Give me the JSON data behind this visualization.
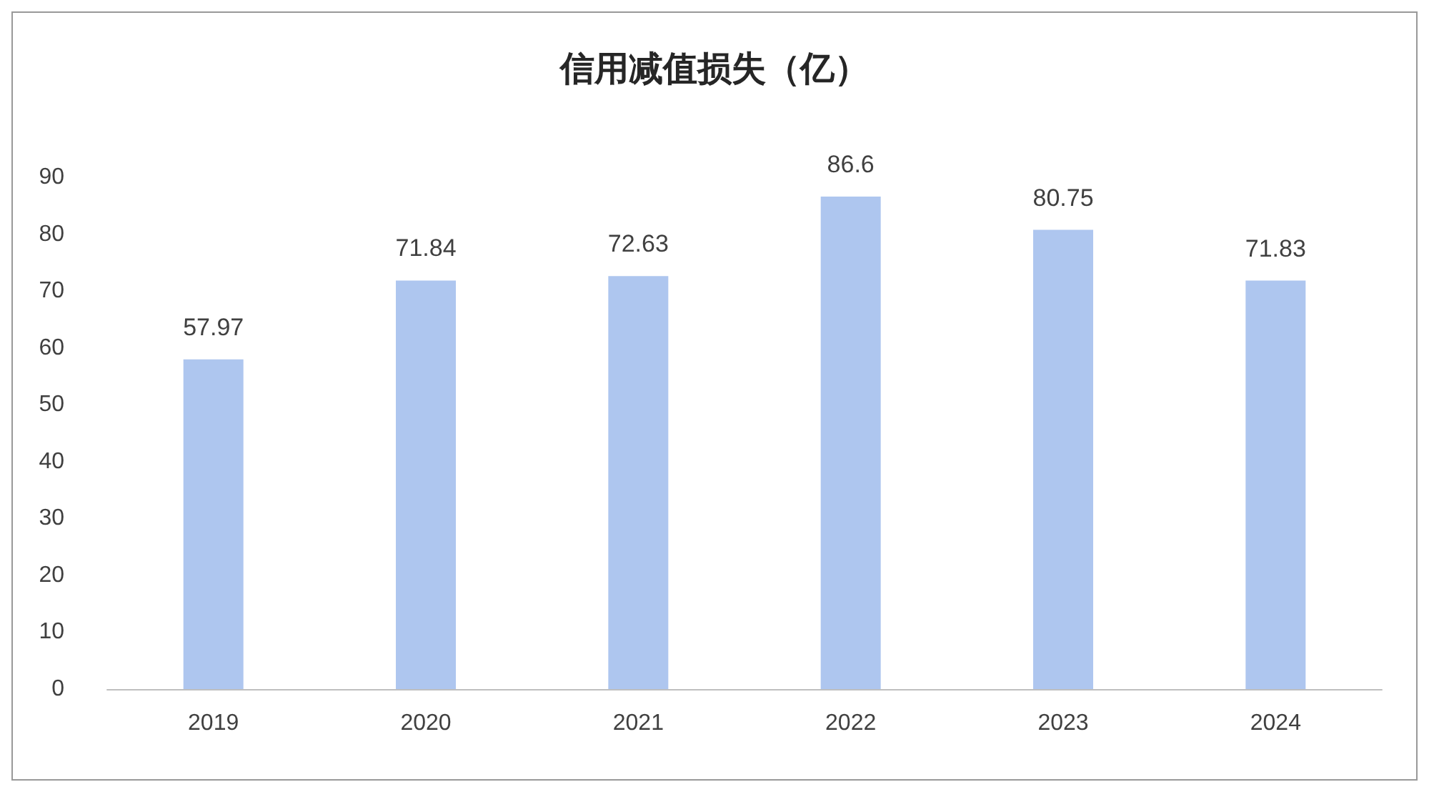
{
  "chart_data": {
    "type": "bar",
    "title": "信用减值损失（亿）",
    "categories": [
      "2019",
      "2020",
      "2021",
      "2022",
      "2023",
      "2024"
    ],
    "values": [
      57.97,
      71.84,
      72.63,
      86.6,
      80.75,
      71.83
    ],
    "color": "#aec6ef",
    "ylim": [
      0,
      90
    ],
    "yticks": [
      0,
      10,
      20,
      30,
      40,
      50,
      60,
      70,
      80,
      90
    ],
    "data_labels": true
  }
}
